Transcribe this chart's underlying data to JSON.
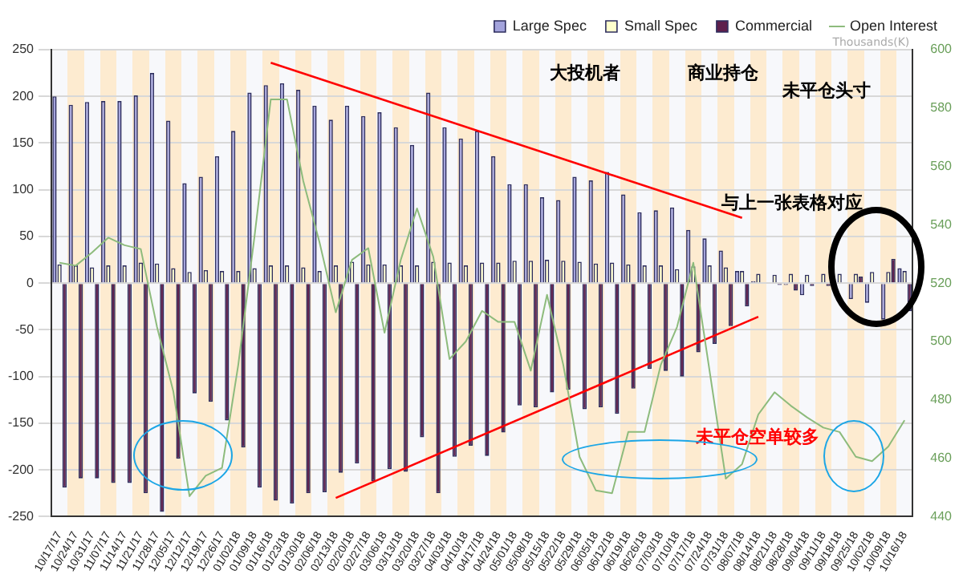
{
  "chart_data": {
    "type": "bar",
    "y2label": "Thousands(K)",
    "categories": [
      "10/17/17",
      "10/24/17",
      "10/31/17",
      "11/07/17",
      "11/14/17",
      "11/21/17",
      "11/28/17",
      "12/05/17",
      "12/12/17",
      "12/19/17",
      "12/26/17",
      "01/02/18",
      "01/09/18",
      "01/16/18",
      "01/23/18",
      "01/30/18",
      "02/06/18",
      "02/13/18",
      "02/20/18",
      "02/27/18",
      "03/06/18",
      "03/13/18",
      "03/20/18",
      "03/27/18",
      "04/03/18",
      "04/10/18",
      "04/17/18",
      "04/24/18",
      "05/01/18",
      "05/08/18",
      "05/15/18",
      "05/22/18",
      "05/29/18",
      "06/05/18",
      "06/12/18",
      "06/19/18",
      "06/26/18",
      "07/03/18",
      "07/10/18",
      "07/17/18",
      "07/24/18",
      "07/31/18",
      "08/07/18",
      "08/14/18",
      "08/21/18",
      "08/28/18",
      "09/04/18",
      "09/11/18",
      "09/18/18",
      "09/25/18",
      "10/02/18",
      "10/09/18",
      "10/16/18"
    ],
    "series": [
      {
        "name": "Large Spec",
        "color": "#a3a3dc",
        "values": [
          200,
          191,
          194,
          195,
          195,
          201,
          225,
          174,
          107,
          114,
          136,
          163,
          204,
          212,
          214,
          207,
          190,
          175,
          190,
          179,
          183,
          167,
          148,
          204,
          167,
          155,
          163,
          136,
          106,
          106,
          92,
          89,
          114,
          110,
          119,
          95,
          76,
          78,
          81,
          57,
          48,
          35,
          13,
          2,
          0,
          -2,
          -13,
          null,
          0,
          -17,
          -21,
          -39,
          16
        ]
      },
      {
        "name": "Small Spec",
        "color": "#ffffcc",
        "values": [
          20,
          19,
          17,
          19,
          19,
          22,
          21,
          16,
          12,
          14,
          13,
          13,
          16,
          19,
          19,
          17,
          13,
          19,
          23,
          20,
          20,
          19,
          19,
          23,
          22,
          19,
          22,
          22,
          24,
          24,
          25,
          24,
          23,
          21,
          22,
          20,
          19,
          19,
          15,
          18,
          19,
          17,
          13,
          10,
          9,
          10,
          9,
          10,
          10,
          10,
          12,
          12,
          13
        ]
      },
      {
        "name": "Commercial",
        "color": "#5e1f4c",
        "values": [
          -219,
          -209,
          -209,
          -214,
          -214,
          -225,
          -245,
          -188,
          -118,
          -127,
          -147,
          -176,
          -219,
          -233,
          -236,
          -225,
          -224,
          -203,
          -193,
          -212,
          -199,
          -202,
          -165,
          -225,
          -186,
          -174,
          -185,
          -160,
          -131,
          -133,
          -117,
          -114,
          -135,
          -133,
          -140,
          -113,
          -92,
          -94,
          -100,
          -74,
          -65,
          -46,
          -25,
          null,
          -2,
          -8,
          -3,
          -3,
          null,
          7,
          null,
          26,
          -30
        ]
      },
      {
        "name": "Open Interest",
        "type": "line",
        "axis": "y2",
        "color": "#8dbb7c",
        "values": [
          527,
          526,
          530.5,
          535.6,
          533,
          531.7,
          505,
          483,
          447,
          454,
          456.7,
          492,
          536,
          583,
          583,
          555,
          534,
          510,
          528,
          532,
          503,
          528,
          545.6,
          529,
          494,
          500,
          510.5,
          506.7,
          506.7,
          490,
          516,
          492,
          460.5,
          449,
          448,
          469,
          469,
          492,
          505,
          527,
          490,
          453,
          458,
          475,
          482.6,
          478,
          474,
          470.5,
          469,
          460.5,
          459,
          464,
          473
        ]
      },
      {
        "type": "line",
        "color": "#ff0000",
        "values": [
          null,
          null,
          null,
          null,
          null,
          null,
          null,
          null,
          null,
          null,
          null,
          null,
          null,
          236,
          null,
          null,
          null,
          null,
          null,
          null,
          null,
          null,
          null,
          null,
          null,
          null,
          null,
          null,
          null,
          null,
          null,
          null,
          null,
          null,
          null,
          null,
          null,
          null,
          null,
          null,
          null,
          null,
          70,
          null,
          null,
          null,
          null,
          null,
          null,
          null,
          null,
          null,
          null
        ]
      },
      {
        "type": "line",
        "color": "#ff0000",
        "values": [
          null,
          null,
          null,
          null,
          null,
          null,
          null,
          null,
          null,
          null,
          null,
          null,
          null,
          null,
          null,
          null,
          null,
          -230,
          null,
          null,
          null,
          null,
          null,
          null,
          null,
          null,
          null,
          null,
          null,
          null,
          null,
          null,
          null,
          null,
          null,
          null,
          null,
          null,
          null,
          null,
          null,
          null,
          null,
          -36,
          null,
          null,
          null,
          null,
          null,
          null,
          null,
          null,
          null
        ]
      }
    ],
    "ylim": [
      -250,
      250
    ],
    "yticks": [
      -250,
      -200,
      -150,
      -100,
      -50,
      0,
      50,
      100,
      150,
      200,
      250
    ],
    "y2lim": [
      440,
      600
    ],
    "y2ticks": [
      440,
      460,
      480,
      500,
      520,
      540,
      560,
      580,
      600
    ],
    "grid": "y",
    "legend": "top right",
    "marker": "none",
    "annotations": [
      "大投机者",
      "商业持仓",
      "未平仓头寸",
      "与上一张表格对应",
      "未平仓空单较多"
    ]
  }
}
